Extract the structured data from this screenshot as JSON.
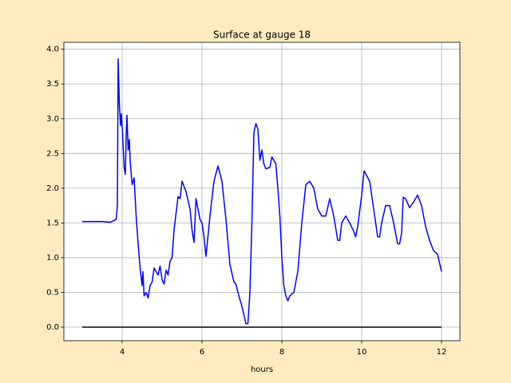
{
  "chart_data": {
    "type": "line",
    "title": "Surface at gauge 18",
    "x_label": "hours",
    "xlim": [
      2.54,
      12.46
    ],
    "ylim": [
      -0.195,
      4.1
    ],
    "xticks": [
      4,
      6,
      8,
      10,
      12
    ],
    "yticks": [
      {
        "value": 0,
        "label": "0.0"
      },
      {
        "value": 0.5,
        "label": "0.5"
      },
      {
        "value": 1,
        "label": "1.0"
      },
      {
        "value": 1.5,
        "label": "1.5"
      },
      {
        "value": 2,
        "label": "2.0"
      },
      {
        "value": 2.5,
        "label": "2.5"
      },
      {
        "value": 3,
        "label": "3.0"
      },
      {
        "value": 3.5,
        "label": "3.5"
      },
      {
        "value": 4,
        "label": "4.0"
      }
    ],
    "grid": true,
    "series": [
      {
        "color": "#0000ff",
        "x": [
          3.0,
          3.5,
          3.7,
          3.85,
          3.88,
          3.9,
          3.93,
          3.96,
          3.98,
          4.0,
          4.05,
          4.08,
          4.1,
          4.12,
          4.15,
          4.18,
          4.2,
          4.25,
          4.3,
          4.35,
          4.4,
          4.45,
          4.5,
          4.52,
          4.55,
          4.6,
          4.65,
          4.7,
          4.75,
          4.8,
          4.85,
          4.9,
          4.95,
          5.0,
          5.05,
          5.1,
          5.15,
          5.2,
          5.25,
          5.3,
          5.4,
          5.45,
          5.5,
          5.6,
          5.7,
          5.75,
          5.8,
          5.85,
          5.9,
          5.95,
          6.0,
          6.05,
          6.1,
          6.2,
          6.3,
          6.4,
          6.5,
          6.6,
          6.7,
          6.8,
          6.85,
          6.9,
          7.0,
          7.05,
          7.1,
          7.15,
          7.2,
          7.25,
          7.3,
          7.35,
          7.4,
          7.45,
          7.5,
          7.55,
          7.6,
          7.7,
          7.75,
          7.85,
          7.9,
          7.95,
          8.0,
          8.05,
          8.1,
          8.15,
          8.2,
          8.3,
          8.4,
          8.5,
          8.6,
          8.7,
          8.8,
          8.9,
          9.0,
          9.1,
          9.2,
          9.3,
          9.4,
          9.45,
          9.5,
          9.6,
          9.7,
          9.8,
          9.85,
          9.9,
          10.0,
          10.06,
          10.2,
          10.3,
          10.4,
          10.45,
          10.5,
          10.6,
          10.7,
          10.8,
          10.9,
          10.95,
          11.0,
          11.04,
          11.1,
          11.2,
          11.3,
          11.4,
          11.5,
          11.6,
          11.7,
          11.8,
          11.9,
          12.0
        ],
        "values": [
          1.52,
          1.52,
          1.51,
          1.55,
          1.75,
          3.86,
          3.2,
          2.9,
          3.07,
          2.9,
          2.3,
          2.2,
          2.75,
          3.05,
          2.55,
          2.7,
          2.4,
          2.05,
          2.15,
          1.6,
          1.2,
          0.85,
          0.6,
          0.8,
          0.45,
          0.5,
          0.42,
          0.6,
          0.65,
          0.85,
          0.8,
          0.75,
          0.88,
          0.68,
          0.62,
          0.82,
          0.75,
          0.95,
          1.0,
          1.4,
          1.88,
          1.85,
          2.1,
          1.95,
          1.7,
          1.4,
          1.22,
          1.85,
          1.7,
          1.55,
          1.5,
          1.3,
          1.02,
          1.6,
          2.1,
          2.32,
          2.1,
          1.55,
          0.9,
          0.65,
          0.62,
          0.5,
          0.3,
          0.18,
          0.05,
          0.05,
          0.5,
          1.5,
          2.8,
          2.93,
          2.85,
          2.4,
          2.55,
          2.35,
          2.28,
          2.3,
          2.45,
          2.35,
          2.0,
          1.6,
          1.0,
          0.6,
          0.45,
          0.38,
          0.45,
          0.5,
          0.8,
          1.5,
          2.05,
          2.1,
          2.0,
          1.7,
          1.6,
          1.6,
          1.85,
          1.6,
          1.25,
          1.25,
          1.5,
          1.6,
          1.5,
          1.38,
          1.3,
          1.45,
          1.9,
          2.25,
          2.1,
          1.7,
          1.3,
          1.3,
          1.5,
          1.75,
          1.75,
          1.5,
          1.2,
          1.2,
          1.35,
          1.87,
          1.85,
          1.72,
          1.8,
          1.9,
          1.75,
          1.45,
          1.25,
          1.1,
          1.05,
          0.8
        ]
      },
      {
        "color": "#000000",
        "x": [
          3,
          12
        ],
        "values": [
          0,
          0
        ]
      }
    ]
  }
}
